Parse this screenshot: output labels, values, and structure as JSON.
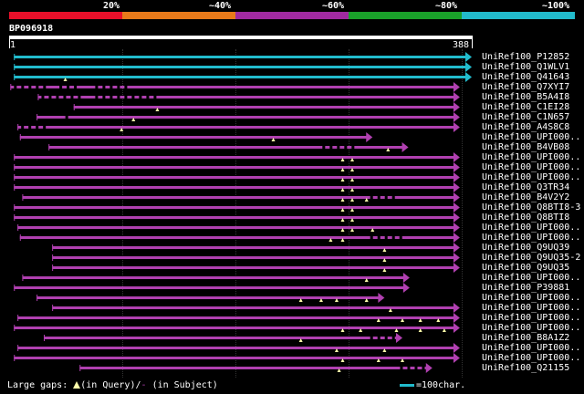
{
  "scale": {
    "labels": [
      "20%",
      "~40%",
      "~60%",
      "~80%",
      "~100%"
    ],
    "colors": [
      "#e8102a",
      "#e87a1a",
      "#a02aa0",
      "#1aa02a",
      "#22bbcc"
    ]
  },
  "query": {
    "id": "BP096918",
    "start": "1",
    "end": "388",
    "length": 388
  },
  "colors": {
    "hit_high": "#22bbcc",
    "hit": "#b040b0",
    "gap_query": "#ffffaa",
    "gap_subject": "#b040b0"
  },
  "hits": [
    {
      "name": "UniRef100_P12852",
      "start": 5,
      "end": 388,
      "color": "cyan",
      "gaps": [],
      "dashes": []
    },
    {
      "name": "UniRef100_Q1WLV1",
      "start": 5,
      "end": 388,
      "color": "cyan",
      "gaps": [],
      "dashes": []
    },
    {
      "name": "UniRef100_Q41643",
      "start": 5,
      "end": 388,
      "color": "cyan",
      "gaps": [
        48
      ],
      "dashes": []
    },
    {
      "name": "UniRef100_Q7XYI7",
      "start": 2,
      "end": 378,
      "color": "magenta",
      "gaps": [],
      "dashes": [
        [
          2,
          30
        ],
        [
          40,
          55
        ],
        [
          70,
          95
        ]
      ]
    },
    {
      "name": "UniRef100_B5A4I8",
      "start": 25,
      "end": 378,
      "color": "magenta",
      "gaps": [],
      "dashes": [
        [
          25,
          60
        ],
        [
          70,
          120
        ]
      ]
    },
    {
      "name": "UniRef100_C1EI28",
      "start": 55,
      "end": 378,
      "color": "magenta",
      "gaps": [
        125
      ],
      "dashes": []
    },
    {
      "name": "UniRef100_C1N657",
      "start": 24,
      "end": 378,
      "color": "magenta",
      "gaps": [
        105
      ],
      "dashes": [
        [
          45,
          50
        ]
      ]
    },
    {
      "name": "UniRef100_A4S8C8",
      "start": 8,
      "end": 378,
      "color": "magenta",
      "gaps": [
        95
      ],
      "dashes": [
        [
          8,
          30
        ]
      ]
    },
    {
      "name": "UniRef100_UPI000..",
      "start": 10,
      "end": 305,
      "color": "magenta",
      "gaps": [
        222
      ],
      "dashes": []
    },
    {
      "name": "UniRef100_B4VB08",
      "start": 34,
      "end": 335,
      "color": "magenta",
      "gaps": [
        318
      ],
      "dashes": [
        [
          260,
          290
        ]
      ]
    },
    {
      "name": "UniRef100_UPI000..",
      "start": 5,
      "end": 378,
      "color": "magenta",
      "gaps": [
        280,
        288
      ],
      "dashes": []
    },
    {
      "name": "UniRef100_UPI000..",
      "start": 5,
      "end": 378,
      "color": "magenta",
      "gaps": [
        280,
        288
      ],
      "dashes": []
    },
    {
      "name": "UniRef100_UPI000..",
      "start": 5,
      "end": 378,
      "color": "magenta",
      "gaps": [
        280,
        288
      ],
      "dashes": []
    },
    {
      "name": "UniRef100_Q3TR34",
      "start": 5,
      "end": 378,
      "color": "magenta",
      "gaps": [
        280,
        288
      ],
      "dashes": []
    },
    {
      "name": "UniRef100_B4V2Y2",
      "start": 12,
      "end": 378,
      "color": "magenta",
      "gaps": [
        280,
        288,
        300
      ],
      "dashes": [
        [
          300,
          320
        ]
      ]
    },
    {
      "name": "UniRef100_Q8BTI8-3",
      "start": 5,
      "end": 378,
      "color": "magenta",
      "gaps": [
        280,
        288
      ],
      "dashes": []
    },
    {
      "name": "UniRef100_Q8BTI8",
      "start": 5,
      "end": 378,
      "color": "magenta",
      "gaps": [
        280,
        288
      ],
      "dashes": []
    },
    {
      "name": "UniRef100_UPI000..",
      "start": 8,
      "end": 378,
      "color": "magenta",
      "gaps": [
        280,
        288,
        305
      ],
      "dashes": []
    },
    {
      "name": "UniRef100_UPI000..",
      "start": 10,
      "end": 378,
      "color": "magenta",
      "gaps": [
        270,
        280
      ],
      "dashes": [
        [
          300,
          330
        ]
      ]
    },
    {
      "name": "UniRef100_Q9UQ39",
      "start": 37,
      "end": 378,
      "color": "magenta",
      "gaps": [
        315
      ],
      "dashes": []
    },
    {
      "name": "UniRef100_Q9UQ35-2",
      "start": 37,
      "end": 378,
      "color": "magenta",
      "gaps": [
        315
      ],
      "dashes": []
    },
    {
      "name": "UniRef100_Q9UQ35",
      "start": 37,
      "end": 378,
      "color": "magenta",
      "gaps": [
        315
      ],
      "dashes": []
    },
    {
      "name": "UniRef100_UPI000..",
      "start": 12,
      "end": 336,
      "color": "magenta",
      "gaps": [
        300
      ],
      "dashes": []
    },
    {
      "name": "UniRef100_P39881",
      "start": 5,
      "end": 336,
      "color": "magenta",
      "gaps": [],
      "dashes": []
    },
    {
      "name": "UniRef100_UPI000..",
      "start": 24,
      "end": 315,
      "color": "magenta",
      "gaps": [
        245,
        262,
        275,
        300
      ],
      "dashes": []
    },
    {
      "name": "UniRef100_UPI000..",
      "start": 37,
      "end": 378,
      "color": "magenta",
      "gaps": [
        320
      ],
      "dashes": []
    },
    {
      "name": "UniRef100_UPI000..",
      "start": 8,
      "end": 378,
      "color": "magenta",
      "gaps": [
        310,
        330,
        345,
        360
      ],
      "dashes": []
    },
    {
      "name": "UniRef100_UPI000..",
      "start": 5,
      "end": 378,
      "color": "magenta",
      "gaps": [
        280,
        295,
        325,
        345,
        365
      ],
      "dashes": []
    },
    {
      "name": "UniRef100_B8A1Z2",
      "start": 30,
      "end": 330,
      "color": "magenta",
      "gaps": [
        245
      ],
      "dashes": [
        [
          300,
          320
        ]
      ]
    },
    {
      "name": "UniRef100_UPI000..",
      "start": 8,
      "end": 378,
      "color": "magenta",
      "gaps": [
        275,
        315
      ],
      "dashes": []
    },
    {
      "name": "UniRef100_UPI000..",
      "start": 5,
      "end": 378,
      "color": "magenta",
      "gaps": [
        280,
        310,
        330
      ],
      "dashes": []
    },
    {
      "name": "UniRef100_Q21155",
      "start": 60,
      "end": 355,
      "color": "magenta",
      "gaps": [
        277
      ],
      "dashes": [
        [
          325,
          350
        ]
      ]
    }
  ],
  "footer": {
    "text": "Large gaps:",
    "query_gap": "(in Query)/",
    "subject_gap": "(in Subject)"
  },
  "legend": {
    "text": "=100char."
  }
}
